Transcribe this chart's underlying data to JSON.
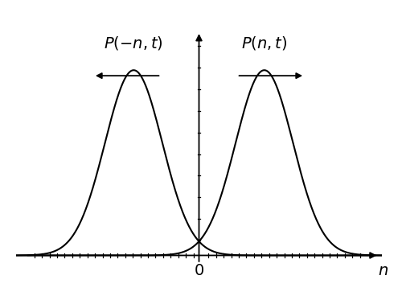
{
  "mu_positive": 2.5,
  "mu_negative": -2.5,
  "sigma": 1.1,
  "x_min": -7.0,
  "x_max": 7.0,
  "amplitude": 1.0,
  "label_left": "$P(-n,t)$",
  "label_right": "$P(n,t)$",
  "x_label": "$n$",
  "origin_label": "$0$",
  "curve_color": "#000000",
  "bg_color": "#ffffff",
  "linewidth": 1.5,
  "arrow_label_fontsize": 14,
  "axis_label_fontsize": 14,
  "y_min": -0.04,
  "y_max": 1.3,
  "figwidth": 5.0,
  "figheight": 3.63,
  "dpi": 100
}
